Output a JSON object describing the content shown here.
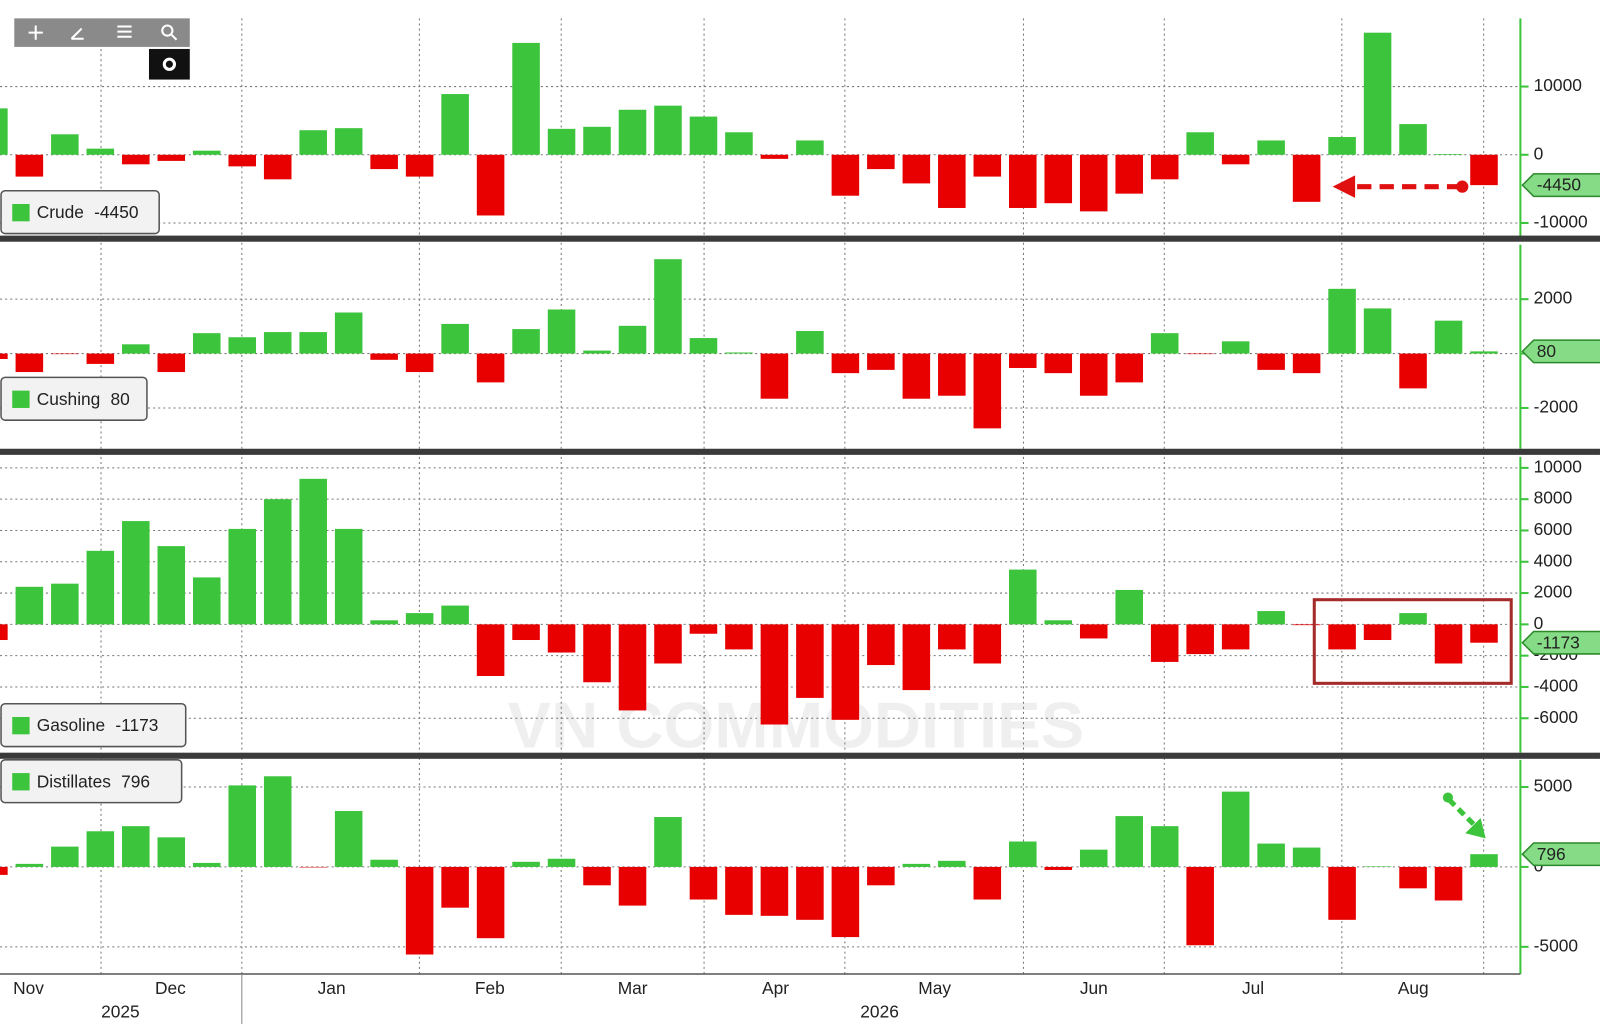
{
  "chart_data": [
    {
      "type": "bar",
      "series": [
        {
          "name": "Crude",
          "values": [
            6800,
            -3200,
            3000,
            900,
            -1400,
            -900,
            600,
            -1700,
            -3600,
            3600,
            3900,
            -2100,
            -3200,
            8900,
            -8900,
            16400,
            3800,
            4100,
            6600,
            7200,
            5600,
            3300,
            -600,
            2100,
            -6000,
            -2100,
            -4200,
            -7800,
            -3200,
            -7800,
            -7100,
            -8300,
            -5700,
            -3600,
            3300,
            -1400,
            2100,
            -6900,
            2600,
            17900,
            4500,
            100,
            -4450
          ]
        }
      ],
      "ylim": [
        -12000,
        20000
      ],
      "yticks": [
        -10000,
        0,
        10000
      ],
      "positive_color": "#3cc43c",
      "negative_color": "#e80000",
      "grid": true
    },
    {
      "type": "bar",
      "series": [
        {
          "name": "Cushing",
          "values": [
            -200,
            -680,
            -20,
            -380,
            340,
            -680,
            750,
            600,
            790,
            790,
            1510,
            -230,
            -680,
            1090,
            -1060,
            900,
            1620,
            110,
            1020,
            3470,
            570,
            40,
            -1660,
            830,
            -720,
            -600,
            -1660,
            -1550,
            -2750,
            -530,
            -720,
            -1550,
            -1060,
            750,
            -20,
            450,
            -600,
            -720,
            2380,
            1660,
            -1280,
            1210,
            80
          ]
        }
      ],
      "ylim": [
        -3500,
        4000
      ],
      "yticks": [
        -2000,
        0,
        2000
      ],
      "positive_color": "#3cc43c",
      "negative_color": "#e80000",
      "grid": true
    },
    {
      "type": "bar",
      "series": [
        {
          "name": "Gasoline",
          "values": [
            -1000,
            2400,
            2600,
            4700,
            6600,
            5000,
            3000,
            6100,
            8000,
            9300,
            6100,
            260,
            720,
            1200,
            -3300,
            -1000,
            -1800,
            -3700,
            -5500,
            -2500,
            -600,
            -1600,
            -6400,
            -4700,
            -6100,
            -2600,
            -4200,
            -1600,
            -2500,
            3500,
            260,
            -900,
            2200,
            -2400,
            -1900,
            -1600,
            850,
            -50,
            -1600,
            -1000,
            720,
            -2500,
            -1173
          ]
        }
      ],
      "ylim": [
        -8200,
        10700
      ],
      "yticks": [
        -6000,
        -4000,
        -2000,
        0,
        2000,
        4000,
        6000,
        8000,
        10000
      ],
      "positive_color": "#3cc43c",
      "negative_color": "#e80000",
      "grid": true
    },
    {
      "type": "bar",
      "series": [
        {
          "name": "Distillates",
          "values": [
            -500,
            190,
            1270,
            2230,
            2550,
            1850,
            250,
            5100,
            5670,
            -30,
            3500,
            450,
            -5480,
            -2550,
            -4460,
            320,
            510,
            -1150,
            -2420,
            3120,
            -2040,
            -3000,
            -3060,
            -3310,
            -4390,
            -1150,
            190,
            380,
            -2040,
            1590,
            -190,
            1080,
            3180,
            2550,
            -4900,
            4710,
            1460,
            1210,
            -3310,
            30,
            -1340,
            -2100,
            796
          ]
        }
      ],
      "ylim": [
        -6700,
        6700
      ],
      "yticks": [
        -5000,
        0,
        5000
      ],
      "positive_color": "#3cc43c",
      "negative_color": "#e80000",
      "grid": true
    }
  ],
  "x_axis": {
    "months": [
      "Nov",
      "Dec",
      "Jan",
      "Feb",
      "Mar",
      "Apr",
      "May",
      "Jun",
      "Jul",
      "Aug"
    ],
    "years": [
      "2025",
      "2026"
    ]
  },
  "watermark": "VN COMMODITIES"
}
